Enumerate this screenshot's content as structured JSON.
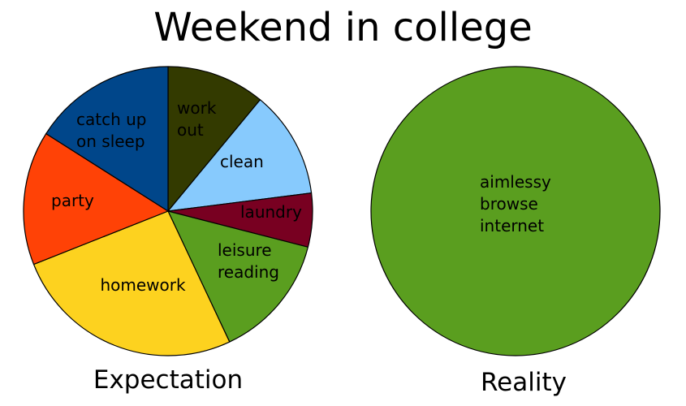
{
  "title": "Weekend in college",
  "chart_data": [
    {
      "type": "pie",
      "caption": "Expectation",
      "slices": [
        {
          "label": [
            "work",
            "out"
          ],
          "value": 11,
          "color": "#333a00"
        },
        {
          "label": [
            "clean"
          ],
          "value": 12,
          "color": "#87cafd"
        },
        {
          "label": [
            "laundry"
          ],
          "value": 6,
          "color": "#780021"
        },
        {
          "label": [
            "leisure",
            "reading"
          ],
          "value": 14,
          "color": "#5a9e1f"
        },
        {
          "label": [
            "homework"
          ],
          "value": 26,
          "color": "#fdd21f"
        },
        {
          "label": [
            "party"
          ],
          "value": 15,
          "color": "#ff4206"
        },
        {
          "label": [
            "catch up",
            "on sleep"
          ],
          "value": 16,
          "color": "#00468a"
        }
      ]
    },
    {
      "type": "pie",
      "caption": "Reality",
      "slices": [
        {
          "label": [
            "aimlessy",
            "browse",
            "internet"
          ],
          "value": 100,
          "color": "#5a9e1f"
        }
      ]
    }
  ]
}
